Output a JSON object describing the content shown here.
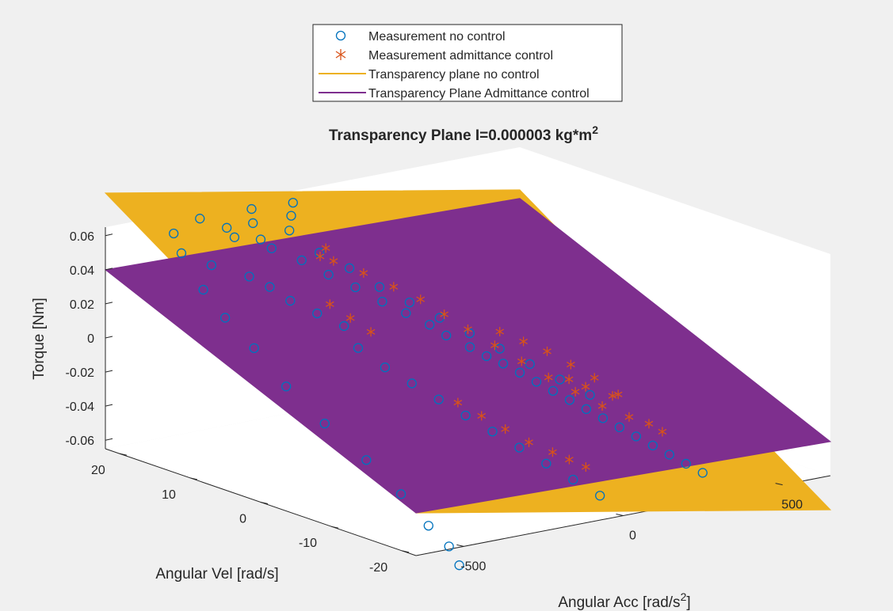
{
  "chart_data": {
    "type": "scatter",
    "projection": "3d",
    "title": "Transparency Plane I=0.000003 kg*m",
    "title_superscript": "2",
    "xlabel": "Angular Acc [rad/s",
    "xlabel_superscript": "2",
    "xlabel_suffix": "]",
    "ylabel": "Angular Vel [rad/s]",
    "zlabel": "Torque [Nm]",
    "xlim": [
      -650,
      650
    ],
    "ylim": [
      -22,
      22
    ],
    "zlim": [
      -0.065,
      0.065
    ],
    "x_ticks": [
      -500,
      0,
      500
    ],
    "x_tick_labels": [
      "-500",
      "0",
      "500"
    ],
    "y_ticks": [
      -20,
      -10,
      0,
      10,
      20
    ],
    "y_tick_labels": [
      "-20",
      "-10",
      "0",
      "10",
      "20"
    ],
    "z_ticks": [
      -0.06,
      -0.04,
      -0.02,
      0,
      0.02,
      0.04,
      0.06
    ],
    "z_tick_labels": [
      "-0.06",
      "-0.04",
      "-0.02",
      "0",
      "0.02",
      "0.04",
      "0.06"
    ],
    "grid": false,
    "legend_position": "top-center",
    "series": [
      {
        "name": "Measurement no control",
        "kind": "scatter",
        "marker": "circle",
        "color": "#0072bd",
        "points": [
          [
            -480,
            20,
            0.058
          ],
          [
            -500,
            18,
            0.05
          ],
          [
            -450,
            16,
            0.044
          ],
          [
            -400,
            15,
            0.06
          ],
          [
            -350,
            12,
            0.056
          ],
          [
            -300,
            10,
            0.05
          ],
          [
            -260,
            8,
            0.043
          ],
          [
            -220,
            6,
            0.037
          ],
          [
            -180,
            4,
            0.03
          ],
          [
            -150,
            2,
            0.025
          ],
          [
            -120,
            0,
            0.02
          ],
          [
            -90,
            -1,
            0.014
          ],
          [
            -60,
            -3,
            0.009
          ],
          [
            -30,
            -4,
            0.004
          ],
          [
            0,
            -5,
            0.0
          ],
          [
            30,
            -6,
            -0.005
          ],
          [
            60,
            -7,
            -0.01
          ],
          [
            90,
            -8,
            -0.015
          ],
          [
            120,
            -9,
            -0.02
          ],
          [
            150,
            -10,
            -0.025
          ],
          [
            180,
            -11,
            -0.03
          ],
          [
            210,
            -12,
            -0.035
          ],
          [
            240,
            -13,
            -0.04
          ],
          [
            270,
            -14,
            -0.045
          ],
          [
            300,
            -15,
            -0.05
          ],
          [
            330,
            -16,
            -0.055
          ],
          [
            360,
            -17,
            -0.06
          ],
          [
            -420,
            19,
            0.066
          ],
          [
            -380,
            17,
            0.062
          ],
          [
            -340,
            14,
            0.058
          ],
          [
            -520,
            14,
            0.035
          ],
          [
            -540,
            10,
            0.025
          ],
          [
            -560,
            5,
            0.015
          ],
          [
            -570,
            0,
            0.0
          ],
          [
            -560,
            -5,
            -0.015
          ],
          [
            -540,
            -10,
            -0.03
          ],
          [
            -520,
            -14,
            -0.045
          ],
          [
            -500,
            -17,
            -0.06
          ],
          [
            -480,
            -19,
            -0.07
          ],
          [
            -470,
            -20,
            -0.08
          ],
          [
            -200,
            12,
            0.048
          ],
          [
            -150,
            10,
            0.04
          ],
          [
            -100,
            8,
            0.03
          ],
          [
            -50,
            6,
            0.022
          ],
          [
            0,
            4,
            0.014
          ],
          [
            50,
            2,
            0.006
          ],
          [
            100,
            0,
            -0.002
          ],
          [
            150,
            -2,
            -0.01
          ],
          [
            200,
            -4,
            -0.018
          ],
          [
            250,
            -6,
            -0.026
          ],
          [
            -300,
            2,
            0.01
          ],
          [
            -260,
            0,
            0.0
          ],
          [
            -220,
            -2,
            -0.008
          ],
          [
            -180,
            -4,
            -0.016
          ],
          [
            -140,
            -6,
            -0.024
          ],
          [
            -100,
            -8,
            -0.032
          ],
          [
            -60,
            -10,
            -0.04
          ],
          [
            -20,
            -12,
            -0.048
          ],
          [
            20,
            -14,
            -0.056
          ],
          [
            60,
            -16,
            -0.064
          ],
          [
            -380,
            8,
            0.032
          ],
          [
            -340,
            6,
            0.026
          ],
          [
            -300,
            4,
            0.02
          ],
          [
            -400,
            10,
            0.038
          ],
          [
            -420,
            12,
            0.042
          ],
          [
            -250,
            14,
            0.06
          ],
          [
            -200,
            16,
            0.064
          ],
          [
            -150,
            18,
            0.067
          ],
          [
            -320,
            16,
            0.064
          ],
          [
            -280,
            18,
            0.068
          ]
        ]
      },
      {
        "name": "Measurement admittance control",
        "kind": "scatter",
        "marker": "asterisk",
        "color": "#d95319",
        "points": [
          [
            -200,
            10,
            0.046
          ],
          [
            -150,
            8,
            0.04
          ],
          [
            -100,
            6,
            0.033
          ],
          [
            -60,
            4,
            0.027
          ],
          [
            -30,
            2,
            0.02
          ],
          [
            0,
            0,
            0.013
          ],
          [
            40,
            -2,
            0.005
          ],
          [
            80,
            -4,
            -0.003
          ],
          [
            120,
            -6,
            -0.011
          ],
          [
            160,
            -8,
            -0.018
          ],
          [
            200,
            -10,
            -0.025
          ],
          [
            240,
            -12,
            -0.03
          ],
          [
            280,
            -13,
            -0.034
          ],
          [
            300,
            -14,
            -0.038
          ],
          [
            250,
            -10,
            -0.02
          ],
          [
            220,
            -8,
            -0.012
          ],
          [
            190,
            -6,
            -0.006
          ],
          [
            160,
            -4,
            0.0
          ],
          [
            130,
            -2,
            0.004
          ],
          [
            100,
            0,
            0.008
          ],
          [
            -120,
            -4,
            -0.02
          ],
          [
            -90,
            -6,
            -0.026
          ],
          [
            -60,
            -8,
            -0.032
          ],
          [
            -30,
            -10,
            -0.038
          ],
          [
            0,
            -12,
            -0.042
          ],
          [
            30,
            -13,
            -0.046
          ],
          [
            60,
            -14,
            -0.05
          ],
          [
            -300,
            6,
            0.03
          ],
          [
            -280,
            4,
            0.024
          ],
          [
            -260,
            2,
            0.018
          ],
          [
            140,
            -8,
            -0.01
          ],
          [
            170,
            -9,
            -0.014
          ],
          [
            210,
            -11,
            -0.018
          ],
          [
            -180,
            12,
            0.05
          ],
          [
            -220,
            11,
            0.048
          ]
        ]
      },
      {
        "name": "Transparency plane no control",
        "kind": "surface",
        "color": "#edb120",
        "corners": [
          [
            -650,
            22,
            0.085
          ],
          [
            650,
            22,
            0.04
          ],
          [
            650,
            -22,
            -0.085
          ],
          [
            -650,
            -22,
            -0.04
          ]
        ]
      },
      {
        "name": "Transparency Plane Admittance control",
        "kind": "surface",
        "color": "#7e2f8e",
        "corners": [
          [
            -650,
            22,
            0.04
          ],
          [
            650,
            22,
            0.035
          ],
          [
            650,
            -22,
            -0.045
          ],
          [
            -650,
            -22,
            -0.04
          ]
        ]
      }
    ]
  }
}
